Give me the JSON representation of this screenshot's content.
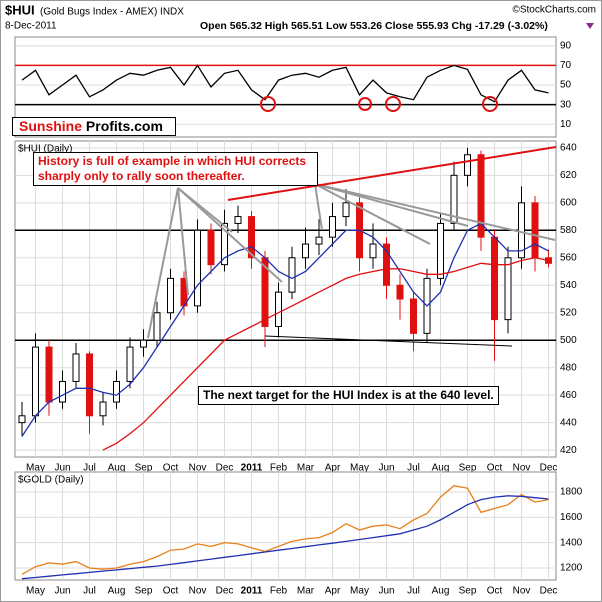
{
  "header": {
    "symbol": "$HUI",
    "name": "(Gold Bugs Index - AMEX) INDX",
    "date": "8-Dec-2011",
    "quote": "Open 565.32  High 565.51  Low 553.26  Close 555.93  Chg -17.29 (-3.02%)",
    "source": "©StockCharts.com"
  },
  "logo": {
    "first": "Sunshine",
    "second": "Profits.com"
  },
  "chart_data": [
    {
      "type": "line",
      "ylim": [
        -3,
        99
      ],
      "yticks": [
        10,
        30,
        50,
        70,
        90
      ],
      "hlines": [
        {
          "value": 70,
          "color": "#e01010"
        },
        {
          "value": 30,
          "color": "#000000"
        }
      ],
      "series": [
        {
          "color": "#000000",
          "values": [
            55,
            65,
            40,
            50,
            60,
            38,
            45,
            55,
            62,
            60,
            65,
            68,
            50,
            70,
            48,
            62,
            65,
            45,
            35,
            55,
            60,
            62,
            58,
            65,
            68,
            40,
            55,
            42,
            38,
            35,
            58,
            65,
            70,
            66,
            40,
            33,
            55,
            65,
            45,
            42
          ]
        }
      ]
    },
    {
      "type": "candlestick",
      "label": "$HUI (Daily)",
      "categories": [
        null,
        "May",
        null,
        "Jun",
        null,
        "Jul",
        null,
        "Aug",
        null,
        "Sep",
        null,
        "Oct",
        null,
        "Nov",
        null,
        "Dec",
        null,
        "2011",
        null,
        "Feb",
        null,
        "Mar",
        null,
        "Apr",
        null,
        "May",
        null,
        "Jun",
        null,
        "Jul",
        null,
        "Aug",
        null,
        "Sep",
        null,
        "Oct",
        null,
        "Nov",
        null,
        "Dec"
      ],
      "open": [
        440,
        445,
        495,
        455,
        470,
        490,
        445,
        455,
        470,
        495,
        500,
        520,
        545,
        525,
        580,
        555,
        585,
        590,
        560,
        510,
        535,
        560,
        570,
        575,
        590,
        600,
        560,
        570,
        540,
        530,
        505,
        545,
        585,
        620,
        635,
        575,
        515,
        560,
        600,
        560
      ],
      "high": [
        455,
        505,
        500,
        478,
        498,
        492,
        462,
        478,
        502,
        508,
        528,
        552,
        550,
        588,
        585,
        595,
        598,
        594,
        565,
        542,
        568,
        582,
        588,
        600,
        610,
        604,
        585,
        575,
        548,
        535,
        552,
        592,
        630,
        640,
        638,
        580,
        568,
        612,
        605,
        566
      ],
      "low": [
        430,
        440,
        445,
        450,
        465,
        432,
        438,
        450,
        465,
        488,
        495,
        515,
        518,
        520,
        548,
        550,
        578,
        552,
        495,
        502,
        530,
        552,
        562,
        568,
        583,
        550,
        552,
        530,
        515,
        492,
        498,
        540,
        580,
        612,
        565,
        485,
        505,
        552,
        550,
        553
      ],
      "close": [
        445,
        495,
        455,
        470,
        490,
        445,
        455,
        470,
        495,
        500,
        520,
        545,
        525,
        580,
        555,
        585,
        590,
        560,
        510,
        535,
        560,
        570,
        575,
        590,
        600,
        560,
        570,
        540,
        530,
        505,
        545,
        585,
        620,
        635,
        575,
        515,
        560,
        600,
        560,
        556
      ],
      "up_color": "#000000",
      "down_color": "#e01010",
      "series": [
        {
          "color": "#2030b0",
          "values": [
            430,
            445,
            455,
            460,
            465,
            465,
            462,
            460,
            468,
            480,
            495,
            510,
            525,
            540,
            550,
            560,
            565,
            568,
            560,
            550,
            545,
            550,
            560,
            570,
            580,
            580,
            575,
            565,
            550,
            535,
            525,
            535,
            560,
            580,
            585,
            575,
            565,
            565,
            570,
            565
          ]
        },
        {
          "color": "#e01010",
          "values": [
            null,
            null,
            null,
            null,
            null,
            null,
            420,
            425,
            432,
            440,
            450,
            460,
            470,
            480,
            490,
            500,
            505,
            510,
            515,
            520,
            525,
            530,
            535,
            540,
            545,
            548,
            550,
            552,
            552,
            550,
            548,
            548,
            550,
            553,
            556,
            555,
            555,
            558,
            560,
            558
          ]
        }
      ],
      "ylim": [
        415,
        645
      ],
      "yticks": [
        420,
        440,
        460,
        480,
        500,
        520,
        540,
        560,
        580,
        600,
        620,
        640
      ],
      "hlines": [
        {
          "value": 580,
          "color": "#000000"
        },
        {
          "value": 500,
          "color": "#000000"
        }
      ],
      "annotations": [
        "History is full of example in which HUI corrects sharply only to rally soon thereafter.",
        "The next target for the HUI Index is at the 640 level."
      ]
    },
    {
      "type": "line",
      "label": "$GOLD (Daily)",
      "categories": [
        null,
        "May",
        null,
        "Jun",
        null,
        "Jul",
        null,
        "Aug",
        null,
        "Sep",
        null,
        "Oct",
        null,
        "Nov",
        null,
        "Dec",
        null,
        "2011",
        null,
        "Feb",
        null,
        "Mar",
        null,
        "Apr",
        null,
        "May",
        null,
        "Jun",
        null,
        "Jul",
        null,
        "Aug",
        null,
        "Sep",
        null,
        "Oct",
        null,
        "Nov",
        null,
        "Dec"
      ],
      "ylim": [
        1105,
        1958
      ],
      "yticks": [
        1200,
        1400,
        1600,
        1800
      ],
      "hlines": [],
      "series": [
        {
          "color": "#e8801a",
          "values": [
            1150,
            1210,
            1240,
            1230,
            1250,
            1200,
            1190,
            1200,
            1230,
            1250,
            1290,
            1340,
            1350,
            1390,
            1370,
            1400,
            1390,
            1360,
            1330,
            1370,
            1410,
            1430,
            1440,
            1480,
            1550,
            1500,
            1530,
            1540,
            1510,
            1580,
            1630,
            1760,
            1850,
            1830,
            1640,
            1670,
            1700,
            1780,
            1720,
            1740
          ]
        },
        {
          "color": "#2030b0",
          "values": [
            1115,
            1125,
            1135,
            1145,
            1155,
            1165,
            1175,
            1185,
            1195,
            1205,
            1215,
            1228,
            1242,
            1256,
            1270,
            1284,
            1298,
            1312,
            1326,
            1340,
            1354,
            1368,
            1382,
            1396,
            1410,
            1425,
            1440,
            1455,
            1470,
            1500,
            1530,
            1580,
            1640,
            1700,
            1740,
            1760,
            1770,
            1765,
            1755,
            1745
          ]
        }
      ]
    }
  ]
}
